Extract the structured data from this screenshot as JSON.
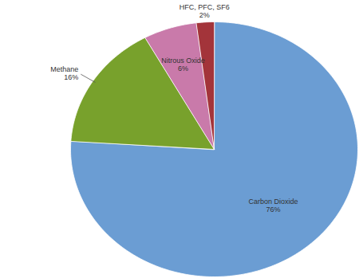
{
  "chart_data": {
    "type": "pie",
    "categories": [
      "Carbon Dioxide",
      "Methane",
      "Nitrous Oxide",
      "HFC, PFC, SF6"
    ],
    "values": [
      76,
      16,
      6,
      2
    ],
    "value_labels": [
      "76%",
      "16%",
      "6%",
      "2%"
    ],
    "colors": [
      "#6b9dd3",
      "#78a12c",
      "#c97aaa",
      "#a3343a"
    ],
    "data_labels": true
  }
}
